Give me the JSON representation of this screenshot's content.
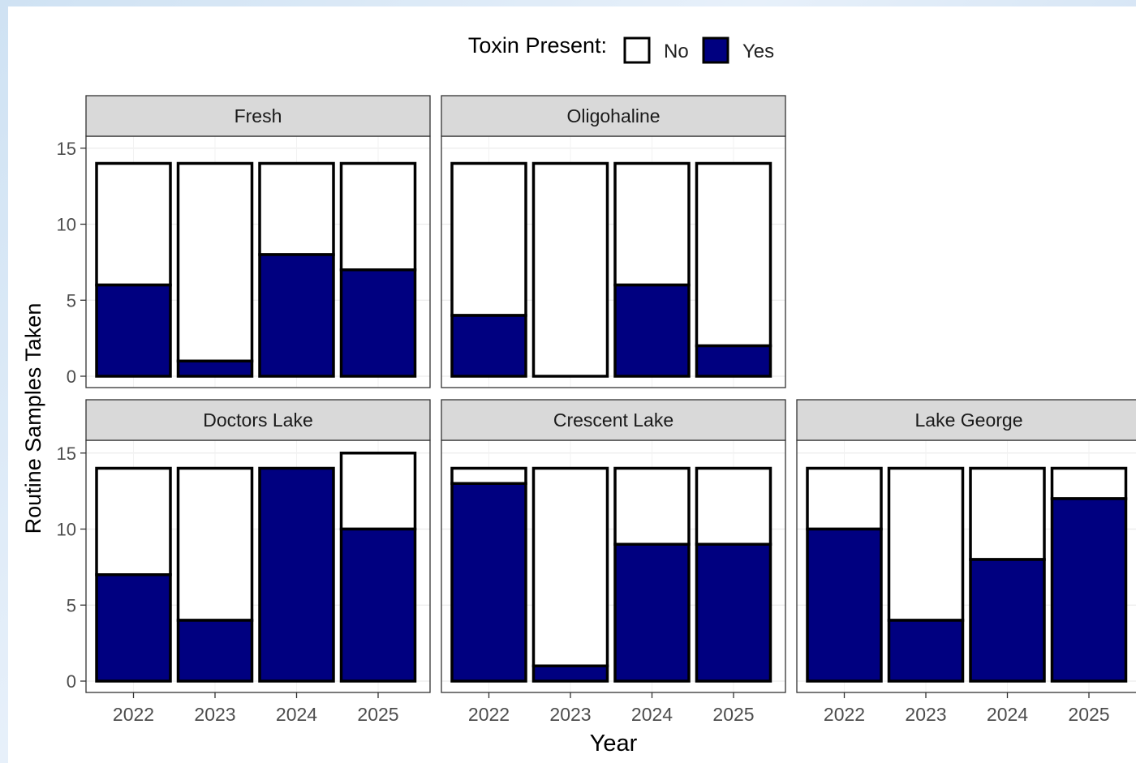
{
  "chart_data": {
    "type": "bar",
    "stacked": true,
    "facet_layout": "2 rows x 3 columns",
    "legend": {
      "title": "Toxin Present:",
      "position": "top",
      "entries": [
        {
          "label": "No",
          "color": "#ffffff"
        },
        {
          "label": "Yes",
          "color": "#000080"
        }
      ]
    },
    "xlabel": "Year",
    "ylabel": "Routine Samples Taken",
    "categories": [
      "2022",
      "2023",
      "2024",
      "2025"
    ],
    "yticks": [
      0,
      5,
      10,
      15
    ],
    "ylim": [
      0,
      17
    ],
    "grid": true,
    "bar_outline_color": "#000000",
    "strip_color": "#d9d9d9",
    "panels": [
      {
        "name": "Fresh",
        "row": 0,
        "col": 0,
        "series": [
          {
            "name": "Yes",
            "values": [
              6,
              1,
              8,
              7
            ]
          },
          {
            "name": "No",
            "values": [
              8,
              13,
              6,
              7
            ]
          }
        ]
      },
      {
        "name": "Oligohaline",
        "row": 0,
        "col": 1,
        "series": [
          {
            "name": "Yes",
            "values": [
              4,
              0,
              6,
              2
            ]
          },
          {
            "name": "No",
            "values": [
              10,
              14,
              8,
              12
            ]
          }
        ]
      },
      {
        "name": "Doctors Lake",
        "row": 1,
        "col": 0,
        "series": [
          {
            "name": "Yes",
            "values": [
              7,
              4,
              14,
              10
            ]
          },
          {
            "name": "No",
            "values": [
              7,
              10,
              0,
              5
            ]
          }
        ]
      },
      {
        "name": "Crescent Lake",
        "row": 1,
        "col": 1,
        "series": [
          {
            "name": "Yes",
            "values": [
              13,
              1,
              9,
              9
            ]
          },
          {
            "name": "No",
            "values": [
              1,
              13,
              5,
              5
            ]
          }
        ]
      },
      {
        "name": "Lake George",
        "row": 1,
        "col": 2,
        "series": [
          {
            "name": "Yes",
            "values": [
              10,
              4,
              8,
              12
            ]
          },
          {
            "name": "No",
            "values": [
              4,
              10,
              6,
              2
            ]
          }
        ]
      }
    ]
  }
}
